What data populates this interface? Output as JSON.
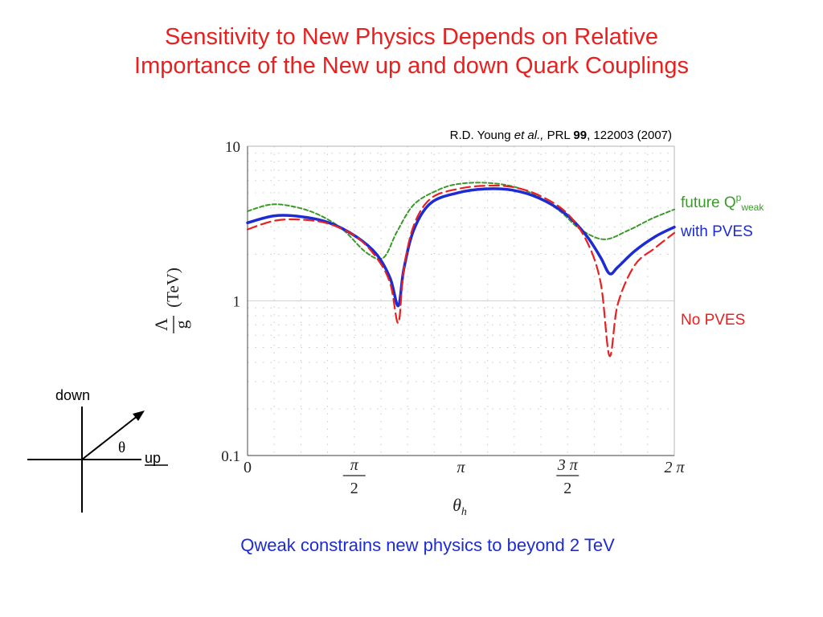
{
  "slide": {
    "title_line1": "Sensitivity to New Physics Depends on Relative",
    "title_line2": "Importance of the New up and down Quark Couplings",
    "footer": "Qweak constrains new physics to beyond 2 TeV",
    "title_color": "#e8201f",
    "footer_color": "#1c2bd4"
  },
  "citation": {
    "authors": "R.D. Young ",
    "etal": "et al.,",
    "journal": " PRL ",
    "volume": "99",
    "rest": ", 122003 (2007)"
  },
  "legend": {
    "future_prefix": "future Q",
    "future_sup": "p",
    "future_sub": "weak",
    "with_pves": "with PVES",
    "no_pves": "No PVES",
    "colors": {
      "future": "#3a9a2a",
      "with_pves": "#1c2bd4",
      "no_pves": "#e8201f"
    }
  },
  "coord_diagram": {
    "down_label": "down",
    "up_label": "up",
    "angle_symbol": "θ"
  },
  "chart_data": {
    "type": "line",
    "xlabel": "θ_h",
    "ylabel": "Λ/g (TeV)",
    "yscale": "log",
    "xlim": [
      0,
      6.2832
    ],
    "ylim": [
      0.1,
      10
    ],
    "grid": true,
    "y_ticks": [
      {
        "value": 0.1,
        "label": "0.1"
      },
      {
        "value": 1,
        "label": "1"
      },
      {
        "value": 10,
        "label": "10"
      }
    ],
    "x_ticks": [
      {
        "value": 0,
        "num": "0",
        "den": ""
      },
      {
        "value": 1.5708,
        "num": "π",
        "den": "2"
      },
      {
        "value": 3.1416,
        "num": "π",
        "den": ""
      },
      {
        "value": 4.7124,
        "num": "3 π",
        "den": "2"
      },
      {
        "value": 6.2832,
        "num": "2 π",
        "den": ""
      }
    ],
    "series": [
      {
        "name": "future Qpweak",
        "color": "#3a9a2a",
        "style": "dashed-fine",
        "x": [
          0,
          0.35,
          0.7,
          1.05,
          1.4,
          1.75,
          2.0,
          2.2,
          2.45,
          2.8,
          3.1,
          3.5,
          3.9,
          4.25,
          4.6,
          4.9,
          5.25,
          5.6,
          5.95,
          6.2832
        ],
        "y": [
          3.8,
          4.2,
          4.05,
          3.6,
          2.9,
          2.05,
          1.9,
          2.8,
          4.2,
          5.2,
          5.7,
          5.8,
          5.5,
          4.8,
          3.8,
          2.9,
          2.5,
          2.85,
          3.4,
          3.9
        ]
      },
      {
        "name": "with PVES",
        "color": "#1c2bd4",
        "style": "solid",
        "x": [
          0,
          0.4,
          0.8,
          1.2,
          1.6,
          1.9,
          2.1,
          2.22,
          2.3,
          2.45,
          2.7,
          3.1,
          3.5,
          3.9,
          4.3,
          4.7,
          5.0,
          5.2,
          5.33,
          5.45,
          5.7,
          6.0,
          6.2832
        ],
        "y": [
          3.2,
          3.55,
          3.5,
          3.2,
          2.6,
          2.0,
          1.4,
          0.93,
          1.6,
          2.9,
          4.3,
          5.0,
          5.3,
          5.2,
          4.6,
          3.6,
          2.6,
          1.9,
          1.5,
          1.65,
          2.1,
          2.6,
          3.0
        ]
      },
      {
        "name": "No PVES",
        "color": "#e8201f",
        "style": "dashed",
        "x": [
          0,
          0.4,
          0.8,
          1.2,
          1.6,
          1.9,
          2.1,
          2.22,
          2.3,
          2.45,
          2.7,
          3.1,
          3.5,
          3.9,
          4.3,
          4.7,
          5.0,
          5.2,
          5.33,
          5.45,
          5.7,
          6.0,
          6.2832
        ],
        "y": [
          2.9,
          3.3,
          3.35,
          3.15,
          2.6,
          1.9,
          1.3,
          0.72,
          1.6,
          3.1,
          4.6,
          5.3,
          5.55,
          5.45,
          4.8,
          3.7,
          2.4,
          1.3,
          0.44,
          0.95,
          1.7,
          2.2,
          2.75
        ]
      }
    ]
  }
}
